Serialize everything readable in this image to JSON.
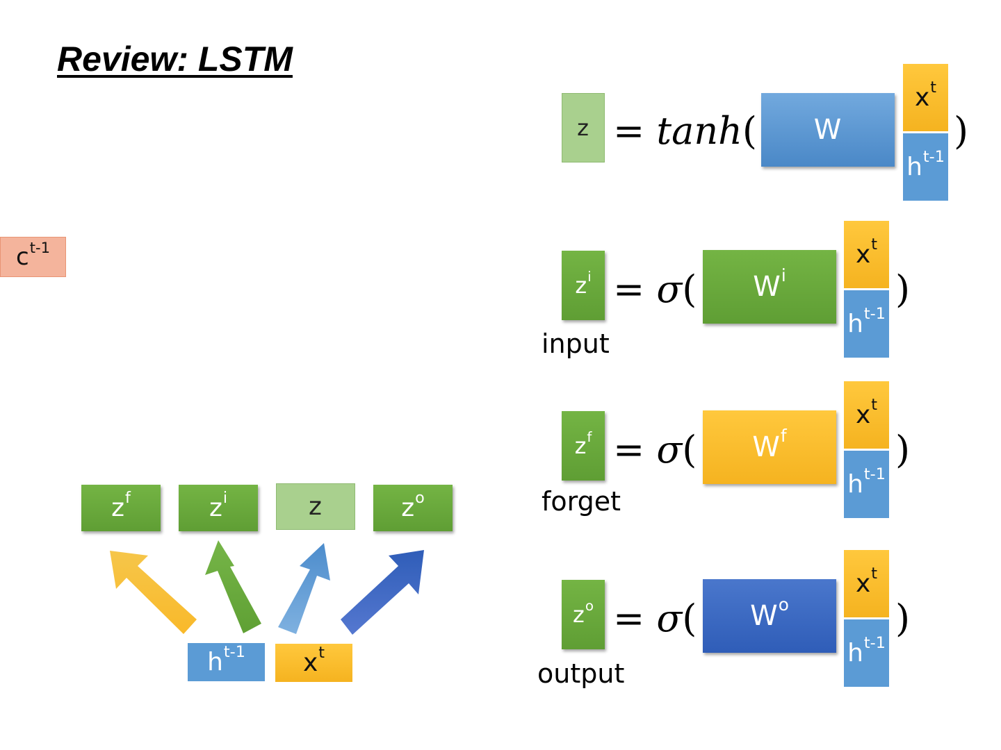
{
  "title": "Review: LSTM",
  "cell_prev": {
    "base": "c",
    "sup": "t-1"
  },
  "gates_row": [
    {
      "base": "z",
      "sup": "f"
    },
    {
      "base": "z",
      "sup": "i"
    },
    {
      "base": "z",
      "sup": ""
    },
    {
      "base": "z",
      "sup": "o"
    }
  ],
  "inputs": {
    "h": {
      "base": "h",
      "sup": "t-1"
    },
    "x": {
      "base": "x",
      "sup": "t"
    }
  },
  "equations": [
    {
      "lhs_base": "z",
      "lhs_sup": "",
      "eq": "=",
      "fn": "tanh",
      "w_base": "W",
      "w_sup": "",
      "gate_label": ""
    },
    {
      "lhs_base": "z",
      "lhs_sup": "i",
      "eq": "=",
      "fn": "σ",
      "w_base": "W",
      "w_sup": "i",
      "gate_label": "input"
    },
    {
      "lhs_base": "z",
      "lhs_sup": "f",
      "eq": "=",
      "fn": "σ",
      "w_base": "W",
      "w_sup": "f",
      "gate_label": "forget"
    },
    {
      "lhs_base": "z",
      "lhs_sup": "o",
      "eq": "=",
      "fn": "σ",
      "w_base": "W",
      "w_sup": "o",
      "gate_label": "output"
    }
  ],
  "paren_open": "(",
  "paren_close": ")",
  "colors": {
    "green": "#6aab3d",
    "light_green": "#a9d08e",
    "yellow": "#fbbf2b",
    "blue": "#5b9bd5",
    "dark_blue": "#3a67c0",
    "salmon": "#f4b49c"
  }
}
